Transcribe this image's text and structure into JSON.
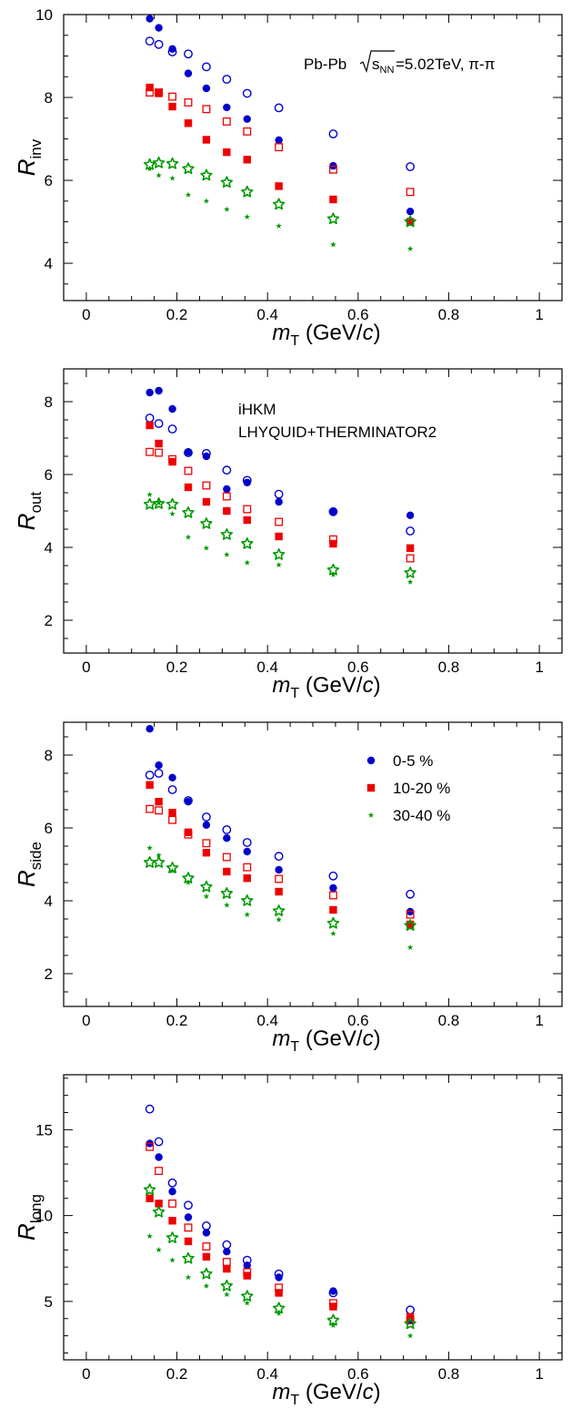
{
  "chart_data": [
    {
      "type": "scatter",
      "xlabel_main": "m",
      "xlabel_sub": "T",
      "xlabel_units": " (GeV/",
      "xlabel_c": "c",
      "xlabel_close": ")",
      "ylabel_main": "R",
      "ylabel_sub": "inv",
      "xlim": [
        -0.05,
        1.05
      ],
      "ylim": [
        3.1,
        10.0
      ],
      "xticks": [
        0,
        0.2,
        0.4,
        0.6,
        0.8,
        1
      ],
      "xtick_labels": [
        "0",
        "0.2",
        "0.4",
        "0.6",
        "0.8",
        "1"
      ],
      "yticks": [
        4,
        6,
        8,
        10
      ],
      "ytick_labels": [
        "4",
        "6",
        "8",
        "10"
      ],
      "annotation": {
        "prefix": "Pb-Pb ",
        "sqrt": "s",
        "sqrt_sub": "NN",
        "suffix": "=5.02TeV, π-π"
      },
      "series": [
        {
          "marker": "circle-filled",
          "color": "#0000cc",
          "x": [
            0.14,
            0.16,
            0.19,
            0.225,
            0.265,
            0.31,
            0.355,
            0.425,
            0.545,
            0.715
          ],
          "values": [
            9.9,
            9.68,
            9.17,
            8.58,
            8.22,
            7.76,
            7.48,
            6.97,
            6.35,
            5.25
          ]
        },
        {
          "marker": "circle-open",
          "color": "#0000cc",
          "x": [
            0.14,
            0.16,
            0.19,
            0.225,
            0.265,
            0.31,
            0.355,
            0.425,
            0.545,
            0.715
          ],
          "values": [
            9.36,
            9.28,
            9.1,
            9.05,
            8.74,
            8.44,
            8.1,
            7.75,
            7.12,
            6.33
          ]
        },
        {
          "marker": "square-filled",
          "color": "#ee0000",
          "x": [
            0.14,
            0.16,
            0.19,
            0.225,
            0.265,
            0.31,
            0.355,
            0.425,
            0.545,
            0.715
          ],
          "values": [
            8.24,
            8.1,
            7.78,
            7.38,
            6.98,
            6.68,
            6.5,
            5.86,
            5.54,
            5.0
          ]
        },
        {
          "marker": "square-open",
          "color": "#ee0000",
          "x": [
            0.14,
            0.16,
            0.19,
            0.225,
            0.265,
            0.31,
            0.355,
            0.425,
            0.545,
            0.715
          ],
          "values": [
            8.12,
            8.12,
            8.02,
            7.88,
            7.72,
            7.42,
            7.18,
            6.8,
            6.26,
            5.72
          ]
        },
        {
          "marker": "star-small",
          "color": "#009900",
          "x": [
            0.14,
            0.16,
            0.19,
            0.225,
            0.265,
            0.31,
            0.355,
            0.425,
            0.545,
            0.715
          ],
          "values": [
            6.28,
            6.12,
            6.05,
            5.65,
            5.5,
            5.3,
            5.12,
            4.9,
            4.45,
            4.35
          ]
        },
        {
          "marker": "star-open",
          "color": "#009900",
          "x": [
            0.14,
            0.16,
            0.19,
            0.225,
            0.265,
            0.31,
            0.355,
            0.425,
            0.545,
            0.715
          ],
          "values": [
            6.38,
            6.42,
            6.4,
            6.28,
            6.12,
            5.95,
            5.72,
            5.42,
            5.07,
            5.0
          ]
        }
      ]
    },
    {
      "type": "scatter",
      "xlabel_main": "m",
      "xlabel_sub": "T",
      "xlabel_units": " (GeV/",
      "xlabel_c": "c",
      "xlabel_close": ")",
      "ylabel_main": "R",
      "ylabel_sub": "out",
      "xlim": [
        -0.05,
        1.05
      ],
      "ylim": [
        1.1,
        8.9
      ],
      "xticks": [
        0,
        0.2,
        0.4,
        0.6,
        0.8,
        1
      ],
      "xtick_labels": [
        "0",
        "0.2",
        "0.4",
        "0.6",
        "0.8",
        "1"
      ],
      "yticks": [
        2,
        4,
        6,
        8
      ],
      "ytick_labels": [
        "2",
        "4",
        "6",
        "8"
      ],
      "annotation_lines": [
        "iHKM",
        "LHYQUID+THERMINATOR2"
      ],
      "series": [
        {
          "marker": "circle-filled",
          "color": "#0000cc",
          "x": [
            0.14,
            0.16,
            0.19,
            0.225,
            0.265,
            0.31,
            0.355,
            0.425,
            0.545,
            0.715
          ],
          "values": [
            8.25,
            8.3,
            7.8,
            6.62,
            6.5,
            5.6,
            5.78,
            5.25,
            4.98,
            4.88
          ]
        },
        {
          "marker": "circle-open",
          "color": "#0000cc",
          "x": [
            0.14,
            0.16,
            0.19,
            0.225,
            0.265,
            0.31,
            0.355,
            0.425,
            0.545,
            0.715
          ],
          "values": [
            7.55,
            7.4,
            7.25,
            6.6,
            6.58,
            6.12,
            5.84,
            5.46,
            4.98,
            4.45
          ]
        },
        {
          "marker": "square-filled",
          "color": "#ee0000",
          "x": [
            0.14,
            0.16,
            0.19,
            0.225,
            0.265,
            0.31,
            0.355,
            0.425,
            0.545,
            0.715
          ],
          "values": [
            7.35,
            6.85,
            6.35,
            5.65,
            5.25,
            5.0,
            4.75,
            4.3,
            4.1,
            3.98
          ]
        },
        {
          "marker": "square-open",
          "color": "#ee0000",
          "x": [
            0.14,
            0.16,
            0.19,
            0.225,
            0.265,
            0.31,
            0.355,
            0.425,
            0.545,
            0.715
          ],
          "values": [
            6.62,
            6.6,
            6.42,
            6.1,
            5.7,
            5.4,
            5.05,
            4.7,
            4.22,
            3.7
          ]
        },
        {
          "marker": "star-small",
          "color": "#009900",
          "x": [
            0.14,
            0.16,
            0.19,
            0.225,
            0.265,
            0.31,
            0.355,
            0.425,
            0.545,
            0.715
          ],
          "values": [
            5.45,
            5.22,
            4.92,
            4.28,
            3.98,
            3.8,
            3.58,
            3.52,
            3.25,
            3.05
          ]
        },
        {
          "marker": "star-open",
          "color": "#009900",
          "x": [
            0.14,
            0.16,
            0.19,
            0.225,
            0.265,
            0.31,
            0.355,
            0.425,
            0.545,
            0.715
          ],
          "values": [
            5.18,
            5.2,
            5.18,
            4.95,
            4.65,
            4.35,
            4.1,
            3.8,
            3.38,
            3.3
          ]
        }
      ]
    },
    {
      "type": "scatter",
      "xlabel_main": "m",
      "xlabel_sub": "T",
      "xlabel_units": " (GeV/",
      "xlabel_c": "c",
      "xlabel_close": ")",
      "ylabel_main": "R",
      "ylabel_sub": "side",
      "xlim": [
        -0.05,
        1.05
      ],
      "ylim": [
        1.1,
        8.9
      ],
      "xticks": [
        0,
        0.2,
        0.4,
        0.6,
        0.8,
        1
      ],
      "xtick_labels": [
        "0",
        "0.2",
        "0.4",
        "0.6",
        "0.8",
        "1"
      ],
      "yticks": [
        2,
        4,
        6,
        8
      ],
      "ytick_labels": [
        "2",
        "4",
        "6",
        "8"
      ],
      "legend": [
        {
          "marker": "circle-filled",
          "color": "#0000cc",
          "label": "0-5 %"
        },
        {
          "marker": "square-filled",
          "color": "#ee0000",
          "label": "10-20 %"
        },
        {
          "marker": "star-small",
          "color": "#009900",
          "label": "30-40 %"
        }
      ],
      "series": [
        {
          "marker": "circle-filled",
          "color": "#0000cc",
          "x": [
            0.14,
            0.16,
            0.19,
            0.225,
            0.265,
            0.31,
            0.355,
            0.425,
            0.545,
            0.715
          ],
          "values": [
            8.72,
            7.72,
            7.38,
            6.72,
            6.08,
            5.72,
            5.35,
            4.85,
            4.35,
            3.7
          ]
        },
        {
          "marker": "circle-open",
          "color": "#0000cc",
          "x": [
            0.14,
            0.16,
            0.19,
            0.225,
            0.265,
            0.31,
            0.355,
            0.425,
            0.545,
            0.715
          ],
          "values": [
            7.45,
            7.5,
            7.05,
            6.75,
            6.3,
            5.95,
            5.6,
            5.22,
            4.68,
            4.18
          ]
        },
        {
          "marker": "square-filled",
          "color": "#ee0000",
          "x": [
            0.14,
            0.16,
            0.19,
            0.225,
            0.265,
            0.31,
            0.355,
            0.425,
            0.545,
            0.715
          ],
          "values": [
            7.18,
            6.72,
            6.42,
            5.88,
            5.32,
            4.8,
            4.62,
            4.25,
            3.75,
            3.35
          ]
        },
        {
          "marker": "square-open",
          "color": "#ee0000",
          "x": [
            0.14,
            0.16,
            0.19,
            0.225,
            0.265,
            0.31,
            0.355,
            0.425,
            0.545,
            0.715
          ],
          "values": [
            6.52,
            6.48,
            6.22,
            5.82,
            5.58,
            5.2,
            4.92,
            4.6,
            4.15,
            3.62
          ]
        },
        {
          "marker": "star-small",
          "color": "#009900",
          "x": [
            0.14,
            0.16,
            0.19,
            0.225,
            0.265,
            0.31,
            0.355,
            0.425,
            0.545,
            0.715
          ],
          "values": [
            5.45,
            5.25,
            4.82,
            4.5,
            4.12,
            3.88,
            3.62,
            3.48,
            3.1,
            2.72
          ]
        },
        {
          "marker": "star-open",
          "color": "#009900",
          "x": [
            0.14,
            0.16,
            0.19,
            0.225,
            0.265,
            0.31,
            0.355,
            0.425,
            0.545,
            0.715
          ],
          "values": [
            5.05,
            5.05,
            4.9,
            4.62,
            4.38,
            4.2,
            4.0,
            3.72,
            3.38,
            3.32
          ]
        }
      ]
    },
    {
      "type": "scatter",
      "xlabel_main": "m",
      "xlabel_sub": "T",
      "xlabel_units": " (GeV/",
      "xlabel_c": "c",
      "xlabel_close": ")",
      "ylabel_main": "R",
      "ylabel_sub": "long",
      "xlim": [
        -0.05,
        1.05
      ],
      "ylim": [
        1.6,
        18.2
      ],
      "xticks": [
        0,
        0.2,
        0.4,
        0.6,
        0.8,
        1
      ],
      "xtick_labels": [
        "0",
        "0.2",
        "0.4",
        "0.6",
        "0.8",
        "1"
      ],
      "yticks": [
        5,
        10,
        15
      ],
      "ytick_labels": [
        "5",
        "10",
        "15"
      ],
      "series": [
        {
          "marker": "circle-filled",
          "color": "#0000cc",
          "x": [
            0.14,
            0.16,
            0.19,
            0.225,
            0.265,
            0.31,
            0.355,
            0.425,
            0.545,
            0.715
          ],
          "values": [
            14.2,
            13.4,
            11.4,
            9.9,
            9.0,
            7.9,
            7.1,
            6.4,
            5.6,
            3.9
          ]
        },
        {
          "marker": "circle-open",
          "color": "#0000cc",
          "x": [
            0.14,
            0.16,
            0.19,
            0.225,
            0.265,
            0.31,
            0.355,
            0.425,
            0.545,
            0.715
          ],
          "values": [
            16.2,
            14.3,
            11.9,
            10.6,
            9.4,
            8.3,
            7.4,
            6.6,
            5.5,
            4.5
          ]
        },
        {
          "marker": "square-filled",
          "color": "#ee0000",
          "x": [
            0.14,
            0.16,
            0.19,
            0.225,
            0.265,
            0.31,
            0.355,
            0.425,
            0.545,
            0.715
          ],
          "values": [
            11.0,
            10.7,
            9.7,
            8.5,
            7.6,
            6.9,
            6.5,
            5.5,
            4.7,
            4.1
          ]
        },
        {
          "marker": "square-open",
          "color": "#ee0000",
          "x": [
            0.14,
            0.16,
            0.19,
            0.225,
            0.265,
            0.31,
            0.355,
            0.425,
            0.545,
            0.715
          ],
          "values": [
            14.0,
            12.6,
            10.7,
            9.3,
            8.2,
            7.3,
            6.7,
            5.8,
            4.9,
            3.9
          ]
        },
        {
          "marker": "star-small",
          "color": "#009900",
          "x": [
            0.14,
            0.16,
            0.19,
            0.225,
            0.265,
            0.31,
            0.355,
            0.425,
            0.545,
            0.715
          ],
          "values": [
            8.8,
            8.0,
            7.4,
            6.4,
            5.9,
            5.4,
            4.9,
            4.3,
            3.6,
            3.0
          ]
        },
        {
          "marker": "star-open",
          "color": "#009900",
          "x": [
            0.14,
            0.16,
            0.19,
            0.225,
            0.265,
            0.31,
            0.355,
            0.425,
            0.545,
            0.715
          ],
          "values": [
            11.5,
            10.2,
            8.7,
            7.5,
            6.6,
            5.9,
            5.3,
            4.6,
            3.9,
            3.7
          ]
        }
      ]
    }
  ]
}
